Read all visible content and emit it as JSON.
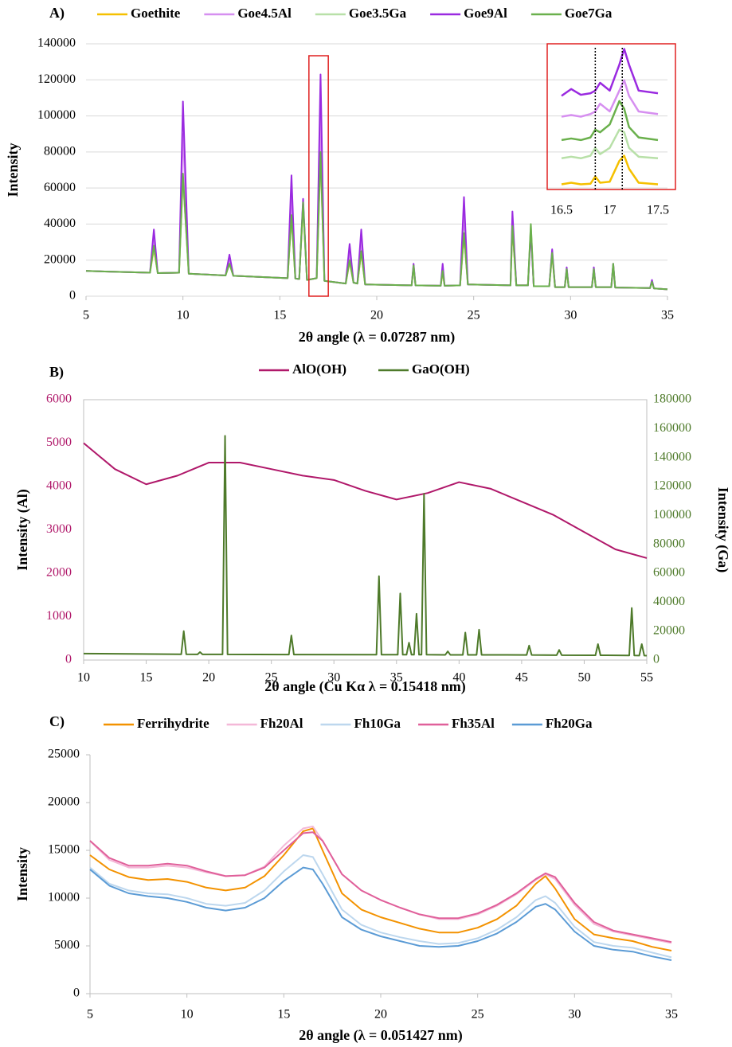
{
  "chart_data": [
    {
      "type": "line",
      "panel_label": "A)",
      "x_label": "2θ angle (λ = 0.07287 nm)",
      "y_label": "Intensity",
      "grid": true,
      "legend": "top",
      "xlim": [
        5,
        35
      ],
      "xticks": [
        5,
        10,
        15,
        20,
        25,
        30,
        35
      ],
      "ylim": [
        0,
        140000
      ],
      "yticks": [
        0,
        20000,
        40000,
        60000,
        80000,
        100000,
        120000,
        140000
      ],
      "x": [
        5,
        8.3,
        8.5,
        8.7,
        9.8,
        10,
        10.3,
        12.2,
        12.4,
        12.6,
        15.4,
        15.6,
        15.8,
        16,
        16.2,
        16.4,
        16.9,
        17.1,
        17.3,
        18.4,
        18.6,
        18.8,
        19,
        19.2,
        19.4,
        21.8,
        21.9,
        22,
        23.3,
        23.4,
        23.5,
        24.3,
        24.5,
        24.7,
        26.9,
        27,
        27.2,
        27.8,
        27.95,
        28.1,
        28.9,
        29.05,
        29.2,
        29.7,
        29.8,
        29.9,
        31.1,
        31.2,
        31.3,
        32.1,
        32.2,
        32.3,
        34.1,
        34.2,
        34.3,
        35
      ],
      "series": [
        {
          "name": "Goethite",
          "color": "#f5c000",
          "values": [
            14000,
            13000,
            26000,
            12800,
            13000,
            66000,
            12500,
            11500,
            18000,
            11300,
            10000,
            44000,
            9800,
            9500,
            50000,
            9000,
            10000,
            78000,
            8500,
            7000,
            19000,
            7500,
            7000,
            24000,
            6500,
            6000,
            16000,
            6000,
            5800,
            13000,
            5800,
            6000,
            34000,
            6500,
            6000,
            38000,
            6000,
            6000,
            38000,
            5500,
            5500,
            23000,
            5000,
            5000,
            14000,
            5000,
            5000,
            14000,
            5000,
            5000,
            17000,
            4800,
            4500,
            8000,
            4300,
            3800
          ]
        },
        {
          "name": "Goe4.5Al",
          "color": "#d68ff0",
          "values": [
            14000,
            13000,
            32000,
            12800,
            13000,
            90000,
            12500,
            11500,
            20000,
            11300,
            10000,
            55000,
            9800,
            9500,
            52000,
            9000,
            10000,
            100000,
            8500,
            7000,
            24000,
            7500,
            7000,
            30000,
            6500,
            6000,
            17000,
            6000,
            5800,
            15000,
            5800,
            6000,
            44000,
            6500,
            6000,
            42000,
            6000,
            6000,
            37000,
            5500,
            5500,
            25000,
            5000,
            5000,
            15000,
            5000,
            5000,
            15000,
            5000,
            5000,
            17000,
            4800,
            4500,
            8500,
            4300,
            3800
          ]
        },
        {
          "name": "Goe3.5Ga",
          "color": "#b8e0a8",
          "values": [
            14000,
            13000,
            27000,
            12800,
            13000,
            66000,
            12500,
            11500,
            18000,
            11300,
            10000,
            45000,
            9800,
            9500,
            51000,
            9000,
            10000,
            79000,
            8500,
            7000,
            20000,
            7500,
            7000,
            25000,
            6500,
            6000,
            17000,
            6000,
            5800,
            14000,
            5800,
            6000,
            36000,
            6500,
            6000,
            40000,
            6000,
            6000,
            40000,
            5500,
            5500,
            24000,
            5000,
            5000,
            15000,
            5000,
            5000,
            15000,
            5000,
            5000,
            18000,
            4800,
            4500,
            8000,
            4300,
            3800
          ]
        },
        {
          "name": "Goe9Al",
          "color": "#9a2ae0",
          "values": [
            14000,
            13000,
            37000,
            12800,
            13000,
            108000,
            12500,
            11500,
            23000,
            11300,
            10000,
            67000,
            9800,
            9500,
            54000,
            9000,
            10000,
            123000,
            8500,
            7000,
            29000,
            7500,
            7000,
            37000,
            6500,
            6000,
            18000,
            6000,
            5800,
            18000,
            5800,
            6000,
            55000,
            6500,
            6000,
            47000,
            6000,
            6000,
            36000,
            5500,
            5500,
            26000,
            5000,
            5000,
            16000,
            5000,
            5000,
            16000,
            5000,
            5000,
            18000,
            4800,
            4500,
            9000,
            4300,
            3800
          ]
        },
        {
          "name": "Goe7Ga",
          "color": "#6ab04c",
          "values": [
            14000,
            13000,
            28000,
            12800,
            13000,
            68000,
            12500,
            11500,
            18000,
            11300,
            10000,
            45000,
            9800,
            9500,
            52000,
            9000,
            10000,
            80000,
            8500,
            7000,
            20000,
            7500,
            7000,
            25000,
            6500,
            6000,
            17000,
            6000,
            5800,
            14000,
            5800,
            6000,
            35000,
            6500,
            6000,
            39000,
            6000,
            6000,
            40000,
            5500,
            5500,
            24000,
            5000,
            5000,
            15000,
            5000,
            5000,
            15000,
            5000,
            5000,
            18000,
            4800,
            4500,
            8000,
            4300,
            3800
          ]
        }
      ]
    },
    {
      "type": "line",
      "panel_label": "B)",
      "x_label": "2θ angle (Cu Kα λ = 0.15418 nm)",
      "y_label": "Intensity (Al)",
      "y2_label": "Intensity (Ga)",
      "frame": true,
      "legend": "top",
      "xlim": [
        10,
        55
      ],
      "xticks": [
        10,
        15,
        20,
        25,
        30,
        35,
        40,
        45,
        50,
        55
      ],
      "ylim": [
        0,
        6000
      ],
      "yticks": [
        0,
        1000,
        2000,
        3000,
        4000,
        5000,
        6000
      ],
      "y2lim": [
        0,
        180000
      ],
      "y2ticks": [
        0,
        20000,
        40000,
        60000,
        80000,
        100000,
        120000,
        140000,
        160000,
        180000
      ],
      "series": [
        {
          "name": "AlO(OH)",
          "color": "#b0186a",
          "x": [
            10,
            12.5,
            15,
            17.5,
            20,
            22.5,
            25,
            27.5,
            30,
            32.5,
            35,
            37.5,
            40,
            42.5,
            45,
            47.5,
            50,
            52.5,
            55
          ],
          "values": [
            5000,
            4400,
            4050,
            4250,
            4550,
            4550,
            4400,
            4250,
            4150,
            3900,
            3700,
            3850,
            4100,
            3950,
            3650,
            3350,
            2950,
            2550,
            2350
          ]
        },
        {
          "name": "GaO(OH)",
          "color": "#4e7a2a",
          "axis": "y2",
          "x": [
            10,
            17.8,
            18,
            18.2,
            19.1,
            19.3,
            19.5,
            21.1,
            21.3,
            21.5,
            26.4,
            26.6,
            26.8,
            33.4,
            33.6,
            33.8,
            35.1,
            35.3,
            35.5,
            35.8,
            36,
            36.2,
            36.4,
            36.6,
            36.8,
            37,
            37.2,
            37.4,
            38.9,
            39.1,
            39.3,
            40.3,
            40.5,
            40.7,
            41.4,
            41.6,
            41.8,
            45.4,
            45.6,
            45.8,
            47.8,
            48,
            48.2,
            50.9,
            51.1,
            51.3,
            53.6,
            53.8,
            54,
            54.4,
            54.6,
            54.8,
            55
          ],
          "values": [
            4500,
            4000,
            20000,
            4000,
            3900,
            5500,
            3900,
            3900,
            155000,
            3900,
            3800,
            17000,
            3800,
            3700,
            58000,
            3700,
            3700,
            46000,
            3700,
            3700,
            12000,
            3700,
            3700,
            32000,
            3700,
            3700,
            115000,
            3700,
            3600,
            6000,
            3600,
            3600,
            19000,
            3600,
            3600,
            21000,
            3600,
            3500,
            10000,
            3500,
            3400,
            7000,
            3400,
            3300,
            11000,
            3300,
            3200,
            36000,
            3200,
            3100,
            11000,
            3100,
            3000
          ]
        }
      ]
    },
    {
      "type": "line",
      "panel_label": "C)",
      "x_label": "2θ angle (λ = 0.051427 nm)",
      "y_label": "Intensity",
      "legend": "top",
      "xlim": [
        5,
        35
      ],
      "xticks": [
        5,
        10,
        15,
        20,
        25,
        30,
        35
      ],
      "ylim": [
        0,
        25000
      ],
      "yticks": [
        0,
        5000,
        10000,
        15000,
        20000,
        25000
      ],
      "x": [
        5,
        6,
        7,
        8,
        9,
        10,
        11,
        12,
        13,
        14,
        15,
        16,
        16.5,
        17,
        18,
        19,
        20,
        21,
        22,
        23,
        24,
        25,
        26,
        27,
        28,
        28.5,
        29,
        30,
        31,
        32,
        33,
        34,
        35
      ],
      "series": [
        {
          "name": "Ferrihydrite",
          "color": "#f39200",
          "values": [
            14500,
            13000,
            12200,
            11900,
            12000,
            11700,
            11100,
            10800,
            11100,
            12300,
            14500,
            17000,
            17300,
            15000,
            10500,
            8800,
            8000,
            7400,
            6800,
            6400,
            6400,
            6900,
            7800,
            9200,
            11500,
            12300,
            11000,
            7800,
            6200,
            5800,
            5500,
            4900,
            4500
          ]
        },
        {
          "name": "Fh20Al",
          "color": "#f4b8d8",
          "values": [
            16000,
            14000,
            13200,
            13200,
            13400,
            13200,
            12700,
            12300,
            12400,
            13300,
            15500,
            17300,
            17500,
            16000,
            12500,
            10800,
            9800,
            9000,
            8300,
            7800,
            7800,
            8300,
            9200,
            10400,
            11900,
            12500,
            12000,
            9300,
            7300,
            6500,
            6100,
            5700,
            5300
          ]
        },
        {
          "name": "Fh10Ga",
          "color": "#bdd7ee",
          "values": [
            13200,
            11500,
            10800,
            10500,
            10400,
            10000,
            9400,
            9200,
            9500,
            10800,
            12800,
            14500,
            14300,
            12500,
            8800,
            7200,
            6400,
            5900,
            5500,
            5200,
            5300,
            5800,
            6700,
            8000,
            9800,
            10200,
            9500,
            7000,
            5400,
            5000,
            4800,
            4300,
            3800
          ]
        },
        {
          "name": "Fh35Al",
          "color": "#e0609a",
          "values": [
            16000,
            14200,
            13400,
            13400,
            13600,
            13400,
            12800,
            12300,
            12400,
            13200,
            15000,
            16800,
            16900,
            16000,
            12500,
            10800,
            9800,
            9000,
            8300,
            7900,
            7900,
            8400,
            9300,
            10500,
            12000,
            12600,
            12200,
            9500,
            7500,
            6600,
            6200,
            5800,
            5400
          ]
        },
        {
          "name": "Fh20Ga",
          "color": "#5b9bd5",
          "values": [
            13000,
            11300,
            10500,
            10200,
            10000,
            9600,
            9000,
            8700,
            9000,
            10000,
            11800,
            13200,
            13000,
            11500,
            8000,
            6700,
            6000,
            5500,
            5000,
            4900,
            5000,
            5500,
            6300,
            7500,
            9100,
            9400,
            8800,
            6500,
            5000,
            4600,
            4400,
            3900,
            3500
          ]
        }
      ]
    },
    {
      "type": "line",
      "frame": true,
      "xlim": [
        16.5,
        17.5
      ],
      "xticks": [
        16.5,
        17,
        17.5
      ],
      "ylim": [
        0,
        28
      ],
      "vlines": [
        16.85,
        17.13
      ],
      "x": [
        16.5,
        16.6,
        16.7,
        16.8,
        16.85,
        16.9,
        17,
        17.1,
        17.15,
        17.2,
        17.3,
        17.5
      ],
      "series": [
        {
          "color": "#f5c000",
          "values": [
            1,
            1.3,
            1,
            1.1,
            2.5,
            1.3,
            1.5,
            5.5,
            6.5,
            4,
            1.3,
            1
          ]
        },
        {
          "color": "#d68ff0",
          "values": [
            14,
            14.3,
            14,
            14.5,
            15,
            16.5,
            15,
            19,
            21,
            18,
            15,
            14.5
          ]
        },
        {
          "color": "#b8e0a8",
          "values": [
            6,
            6.3,
            6,
            6.5,
            8,
            6.8,
            8,
            11.5,
            11,
            8,
            6.3,
            6
          ]
        },
        {
          "color": "#9a2ae0",
          "values": [
            18,
            19.3,
            18.2,
            18.5,
            19,
            20.5,
            19,
            24,
            27,
            24,
            19,
            18.5
          ]
        },
        {
          "color": "#6ab04c",
          "values": [
            9.5,
            9.8,
            9.5,
            10,
            11.5,
            11,
            12.5,
            17,
            15.5,
            12,
            10,
            9.5
          ]
        }
      ]
    }
  ]
}
